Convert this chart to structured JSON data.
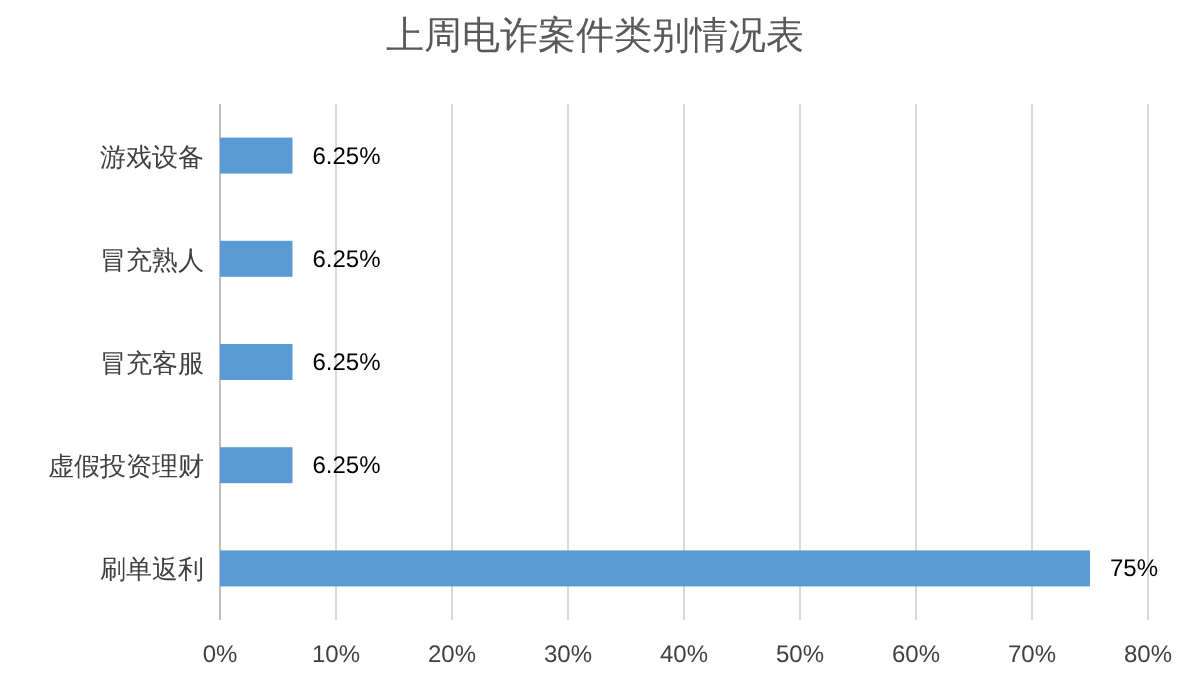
{
  "chart_data": {
    "type": "bar",
    "orientation": "horizontal",
    "title": "上周电诈案件类别情况表",
    "categories": [
      "游戏设备",
      "冒充熟人",
      "冒充客服",
      "虚假投资理财",
      "刷单返利"
    ],
    "values": [
      6.25,
      6.25,
      6.25,
      6.25,
      75
    ],
    "value_labels": [
      "6.25%",
      "6.25%",
      "6.25%",
      "6.25%",
      "75%"
    ],
    "color": "#5b9bd5",
    "xlim": [
      0,
      80
    ],
    "xticks": [
      {
        "value": 0,
        "label": "0%"
      },
      {
        "value": 10,
        "label": "10%"
      },
      {
        "value": 20,
        "label": "20%"
      },
      {
        "value": 30,
        "label": "30%"
      },
      {
        "value": 40,
        "label": "40%"
      },
      {
        "value": 50,
        "label": "50%"
      },
      {
        "value": 60,
        "label": "60%"
      },
      {
        "value": 70,
        "label": "70%"
      },
      {
        "value": 80,
        "label": "80%"
      }
    ],
    "grid": "x"
  }
}
